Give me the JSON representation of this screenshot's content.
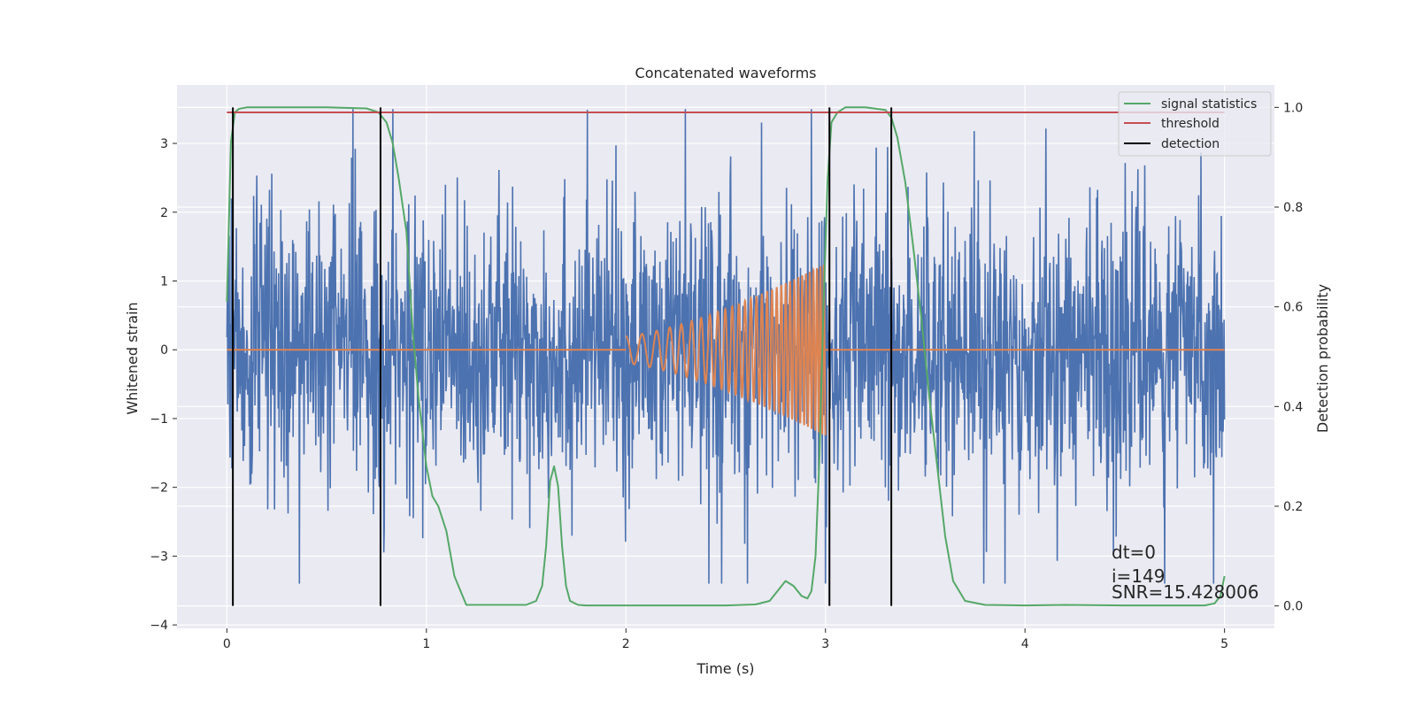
{
  "chart_data": {
    "type": "line",
    "title": "Concatenated waveforms",
    "xlabel": "Time (s)",
    "ylabel": "Whitened strain",
    "y2label": "Detection probability",
    "xlim": [
      -0.25,
      5.25
    ],
    "ylim": [
      -4.05,
      3.85
    ],
    "y2lim": [
      -0.045,
      1.045
    ],
    "xticks": [
      0,
      1,
      2,
      3,
      4,
      5
    ],
    "yticks": [
      -4,
      -3,
      -2,
      -1,
      0,
      1,
      2,
      3
    ],
    "y2ticks": [
      0.0,
      0.2,
      0.4,
      0.6,
      0.8,
      1.0
    ],
    "xtick_labels": [
      "0",
      "1",
      "2",
      "3",
      "4",
      "5"
    ],
    "ytick_labels": [
      "−4",
      "−3",
      "−2",
      "−1",
      "0",
      "1",
      "2",
      "3"
    ],
    "y2tick_labels": [
      "0.0",
      "0.2",
      "0.4",
      "0.6",
      "0.8",
      "1.0"
    ],
    "grid": true,
    "legend_position": "top-right",
    "colors": {
      "background": "#eaeaf2",
      "grid": "#ffffff",
      "strain": "#4c72b0",
      "injection": "#dd8452",
      "statistics": "#55a868",
      "threshold": "#c44e52",
      "detection": "#000000"
    },
    "series": [
      {
        "key": "whitened_strain",
        "axis": "left",
        "color": "#4c72b0",
        "description": "noisy whitened strain, roughly within -3.4 to 3.5",
        "x_range": [
          0,
          5
        ],
        "typical_amplitude": 1.0,
        "peak_max": 3.5,
        "peak_min": -3.4
      },
      {
        "key": "injected_chirp",
        "axis": "left",
        "color": "#dd8452",
        "flat_x": [
          0,
          5
        ],
        "chirp": {
          "t_start": 2.0,
          "t_end": 3.0,
          "amp_start": 0.2,
          "amp_end": 1.25,
          "freq_start": 12,
          "freq_end": 60
        }
      },
      {
        "name": "signal statistics",
        "axis": "right",
        "color": "#55a868",
        "x": [
          0.0,
          0.02,
          0.04,
          0.06,
          0.1,
          0.2,
          0.5,
          0.7,
          0.76,
          0.8,
          0.83,
          0.86,
          0.9,
          0.93,
          0.96,
          1.0,
          1.03,
          1.06,
          1.1,
          1.14,
          1.2,
          1.5,
          1.55,
          1.58,
          1.6,
          1.62,
          1.64,
          1.66,
          1.68,
          1.7,
          1.72,
          1.76,
          1.8,
          2.0,
          2.5,
          2.65,
          2.72,
          2.76,
          2.8,
          2.84,
          2.88,
          2.91,
          2.93,
          2.95,
          2.97,
          2.99,
          3.01,
          3.03,
          3.06,
          3.1,
          3.2,
          3.3,
          3.33,
          3.36,
          3.4,
          3.44,
          3.48,
          3.52,
          3.56,
          3.6,
          3.64,
          3.7,
          3.8,
          4.0,
          4.2,
          4.5,
          4.8,
          4.9,
          4.95,
          4.98,
          5.0
        ],
        "y": [
          0.61,
          0.93,
          0.99,
          0.997,
          1.0,
          1.0,
          1.0,
          0.998,
          0.99,
          0.97,
          0.93,
          0.86,
          0.75,
          0.56,
          0.42,
          0.28,
          0.22,
          0.2,
          0.15,
          0.06,
          0.002,
          0.002,
          0.01,
          0.04,
          0.12,
          0.25,
          0.28,
          0.24,
          0.12,
          0.04,
          0.01,
          0.002,
          0.001,
          0.001,
          0.001,
          0.003,
          0.01,
          0.03,
          0.05,
          0.04,
          0.02,
          0.015,
          0.03,
          0.1,
          0.3,
          0.6,
          0.85,
          0.97,
          0.99,
          1.0,
          1.0,
          0.995,
          0.98,
          0.94,
          0.85,
          0.72,
          0.58,
          0.42,
          0.28,
          0.14,
          0.05,
          0.01,
          0.002,
          0.001,
          0.002,
          0.001,
          0.001,
          0.001,
          0.005,
          0.02,
          0.06
        ]
      },
      {
        "name": "threshold",
        "axis": "right",
        "color": "#c44e52",
        "x": [
          0,
          5
        ],
        "y": [
          0.99,
          0.99
        ]
      },
      {
        "name": "detection",
        "axis": "right",
        "color": "#000000",
        "times": [
          0.03,
          0.77,
          3.02,
          3.33
        ],
        "y_range": [
          0.0,
          1.0
        ]
      }
    ],
    "legend": [
      "signal statistics",
      "threshold",
      "detection"
    ],
    "annotations": [
      "dt=0",
      "i=149",
      "SNR=15.428006"
    ]
  }
}
